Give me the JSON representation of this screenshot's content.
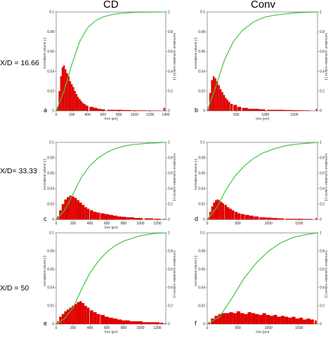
{
  "column_titles": [
    "CD",
    "Conv"
  ],
  "row_labels": [
    "X/D = 16.66",
    "X/D= 33.33",
    "X/D = 50"
  ],
  "colors": {
    "histogram": "#e00000",
    "cumulative": "#44c444",
    "axis": "#555555"
  },
  "chart_data": [
    {
      "panel": "a",
      "type": "bar",
      "xlabel": "Size [µm]",
      "ylabel": "normalized volume [-]",
      "y2label": "normalized cumulative volume [-]",
      "xlim": [
        0,
        1400
      ],
      "ylim": [
        0,
        0.1
      ],
      "y2lim": [
        0,
        1
      ],
      "xticks": [
        0,
        200,
        400,
        600,
        800,
        1000,
        1200,
        1400
      ],
      "yticks": [
        0,
        0.02,
        0.04,
        0.06,
        0.08,
        0.1
      ],
      "y2ticks": [
        0,
        0.2,
        0.4,
        0.6,
        0.8,
        1
      ],
      "hist_x": [
        20,
        40,
        60,
        80,
        100,
        120,
        140,
        160,
        180,
        200,
        220,
        240,
        260,
        280,
        300,
        320,
        340,
        360,
        380,
        400,
        450,
        500,
        550,
        600,
        700,
        800,
        900,
        1000,
        1100,
        1200,
        1300,
        1380
      ],
      "hist_y": [
        0.004,
        0.02,
        0.035,
        0.044,
        0.046,
        0.042,
        0.038,
        0.035,
        0.03,
        0.027,
        0.024,
        0.02,
        0.017,
        0.014,
        0.012,
        0.01,
        0.008,
        0.007,
        0.006,
        0.005,
        0.004,
        0.003,
        0.002,
        0.0015,
        0.001,
        0.001,
        0.0008,
        0.0005,
        0.0005,
        0.0004,
        0.0003,
        0.003
      ],
      "cum_x": [
        0,
        100,
        200,
        300,
        400,
        500,
        600,
        700,
        800,
        1000,
        1200,
        1400
      ],
      "cum_y": [
        0,
        0.2,
        0.47,
        0.7,
        0.84,
        0.91,
        0.95,
        0.97,
        0.985,
        0.995,
        0.998,
        1.0
      ]
    },
    {
      "panel": "b",
      "type": "bar",
      "xlabel": "Size [µm]",
      "ylabel": "normalized volume [-]",
      "y2label": "normalized cumulative volume [-]",
      "xlim": [
        0,
        1900
      ],
      "ylim": [
        0,
        0.1
      ],
      "y2lim": [
        0,
        1
      ],
      "xticks": [
        500,
        1000,
        1500
      ],
      "yticks": [
        0,
        0.02,
        0.04,
        0.06,
        0.08,
        0.1
      ],
      "y2ticks": [
        0,
        0.2,
        0.4,
        0.6,
        0.8,
        1
      ],
      "hist_x": [
        20,
        50,
        80,
        110,
        140,
        170,
        200,
        230,
        260,
        290,
        320,
        350,
        380,
        420,
        480,
        550,
        650,
        750,
        850,
        950,
        1100,
        1250,
        1400,
        1550,
        1700,
        1880
      ],
      "hist_y": [
        0.004,
        0.018,
        0.031,
        0.035,
        0.033,
        0.03,
        0.026,
        0.022,
        0.019,
        0.016,
        0.013,
        0.011,
        0.009,
        0.007,
        0.006,
        0.004,
        0.003,
        0.002,
        0.002,
        0.0015,
        0.001,
        0.001,
        0.0008,
        0.0006,
        0.0005,
        0.002
      ],
      "cum_x": [
        0,
        150,
        300,
        450,
        600,
        800,
        1000,
        1200,
        1500,
        1900
      ],
      "cum_y": [
        0,
        0.25,
        0.52,
        0.7,
        0.81,
        0.9,
        0.95,
        0.97,
        0.99,
        1.0
      ]
    },
    {
      "panel": "c",
      "type": "bar",
      "xlabel": "Size [µm]",
      "ylabel": "normalized volume [-]",
      "y2label": "normalized cumulative volume [-]",
      "xlim": [
        0,
        1300
      ],
      "ylim": [
        0,
        0.1
      ],
      "y2lim": [
        0,
        1
      ],
      "xticks": [
        0,
        200,
        400,
        600,
        800,
        1000,
        1200
      ],
      "yticks": [
        0,
        0.02,
        0.04,
        0.06,
        0.08,
        0.1
      ],
      "y2ticks": [
        0,
        0.2,
        0.4,
        0.6,
        0.8,
        1
      ],
      "hist_x": [
        20,
        50,
        80,
        110,
        140,
        170,
        200,
        230,
        260,
        290,
        320,
        350,
        380,
        420,
        460,
        500,
        550,
        600,
        650,
        700,
        750,
        800,
        850,
        900,
        950,
        1000,
        1100,
        1200,
        1280
      ],
      "hist_y": [
        0.004,
        0.012,
        0.02,
        0.026,
        0.029,
        0.031,
        0.03,
        0.028,
        0.025,
        0.022,
        0.019,
        0.016,
        0.014,
        0.012,
        0.01,
        0.009,
        0.008,
        0.007,
        0.006,
        0.005,
        0.004,
        0.0035,
        0.003,
        0.003,
        0.002,
        0.002,
        0.0015,
        0.001,
        0.0008
      ],
      "cum_x": [
        0,
        100,
        200,
        300,
        400,
        500,
        600,
        700,
        800,
        900,
        1000,
        1100,
        1200,
        1300
      ],
      "cum_y": [
        0,
        0.12,
        0.33,
        0.55,
        0.7,
        0.8,
        0.87,
        0.92,
        0.95,
        0.97,
        0.98,
        0.99,
        0.995,
        1.0
      ]
    },
    {
      "panel": "d",
      "type": "bar",
      "xlabel": "",
      "ylabel": "normalized volume [-]",
      "y2label": "normalized cumulative volume [-]",
      "xlim": [
        0,
        1800
      ],
      "ylim": [
        0,
        0.1
      ],
      "y2lim": [
        0,
        1
      ],
      "xticks": [
        0,
        500,
        1000,
        1500
      ],
      "yticks": [
        0,
        0.02,
        0.04,
        0.06,
        0.08,
        0.1
      ],
      "y2ticks": [
        0,
        0.2,
        0.4,
        0.6,
        0.8,
        1
      ],
      "hist_x": [
        20,
        50,
        80,
        110,
        140,
        170,
        200,
        230,
        260,
        300,
        340,
        380,
        420,
        470,
        520,
        580,
        650,
        720,
        800,
        900,
        1000,
        1100,
        1200,
        1350,
        1500,
        1650,
        1780
      ],
      "hist_y": [
        0.003,
        0.01,
        0.017,
        0.022,
        0.025,
        0.026,
        0.025,
        0.023,
        0.021,
        0.019,
        0.016,
        0.014,
        0.012,
        0.01,
        0.008,
        0.007,
        0.006,
        0.005,
        0.004,
        0.003,
        0.0025,
        0.002,
        0.0015,
        0.001,
        0.001,
        0.0008,
        0.002
      ],
      "cum_x": [
        0,
        150,
        300,
        450,
        600,
        750,
        900,
        1100,
        1300,
        1500,
        1800
      ],
      "cum_y": [
        0,
        0.15,
        0.38,
        0.56,
        0.69,
        0.79,
        0.86,
        0.92,
        0.96,
        0.98,
        1.0
      ]
    },
    {
      "panel": "e",
      "type": "bar",
      "xlabel": "Size [µm]",
      "ylabel": "normalized volume [-]",
      "y2label": "normalized cumulative volume [-]",
      "xlim": [
        0,
        1300
      ],
      "ylim": [
        0,
        0.1
      ],
      "y2lim": [
        0,
        1
      ],
      "xticks": [
        0,
        200,
        400,
        600,
        800,
        1000,
        1200
      ],
      "yticks": [
        0,
        0.02,
        0.04,
        0.06,
        0.08,
        0.1
      ],
      "y2ticks": [
        0,
        0.2,
        0.4,
        0.6,
        0.8,
        1
      ],
      "hist_x": [
        20,
        50,
        80,
        110,
        140,
        170,
        200,
        230,
        260,
        290,
        320,
        350,
        380,
        420,
        460,
        500,
        550,
        600,
        650,
        700,
        750,
        800,
        850,
        900,
        950,
        1000,
        1050,
        1100,
        1150,
        1200,
        1250,
        1290
      ],
      "hist_y": [
        0.003,
        0.008,
        0.011,
        0.014,
        0.016,
        0.018,
        0.02,
        0.022,
        0.024,
        0.025,
        0.023,
        0.02,
        0.018,
        0.015,
        0.013,
        0.011,
        0.01,
        0.008,
        0.007,
        0.006,
        0.005,
        0.004,
        0.004,
        0.003,
        0.003,
        0.003,
        0.002,
        0.002,
        0.002,
        0.002,
        0.0015,
        0.001
      ],
      "cum_x": [
        0,
        100,
        200,
        300,
        400,
        500,
        600,
        700,
        800,
        900,
        1000,
        1100,
        1200,
        1300
      ],
      "cum_y": [
        0,
        0.06,
        0.18,
        0.38,
        0.56,
        0.69,
        0.79,
        0.86,
        0.91,
        0.94,
        0.97,
        0.985,
        0.995,
        1.0
      ]
    },
    {
      "panel": "f",
      "type": "bar",
      "xlabel": "Size [µm]",
      "ylabel": "normalized volume [-]",
      "y2label": "normalized cumulative volume [-]",
      "xlim": [
        0,
        1800
      ],
      "ylim": [
        0,
        0.1
      ],
      "y2lim": [
        0,
        1
      ],
      "xticks": [
        0,
        500,
        1000,
        1500
      ],
      "yticks": [
        0,
        0.02,
        0.04,
        0.06,
        0.08,
        0.1
      ],
      "y2ticks": [
        0,
        0.2,
        0.4,
        0.6,
        0.8,
        1
      ],
      "hist_x": [
        30,
        90,
        150,
        210,
        270,
        330,
        390,
        450,
        510,
        570,
        630,
        690,
        750,
        810,
        870,
        930,
        990,
        1050,
        1110,
        1170,
        1230,
        1290,
        1350,
        1410,
        1470,
        1530,
        1590,
        1650,
        1710,
        1770
      ],
      "hist_y": [
        0.002,
        0.006,
        0.009,
        0.011,
        0.012,
        0.012,
        0.013,
        0.012,
        0.014,
        0.012,
        0.011,
        0.013,
        0.012,
        0.011,
        0.01,
        0.012,
        0.01,
        0.009,
        0.01,
        0.008,
        0.009,
        0.008,
        0.007,
        0.008,
        0.006,
        0.007,
        0.005,
        0.006,
        0.005,
        0.004
      ],
      "cum_x": [
        0,
        200,
        400,
        600,
        800,
        1000,
        1200,
        1400,
        1600,
        1800
      ],
      "cum_y": [
        0,
        0.08,
        0.28,
        0.5,
        0.67,
        0.8,
        0.89,
        0.95,
        0.98,
        1.0
      ]
    }
  ]
}
